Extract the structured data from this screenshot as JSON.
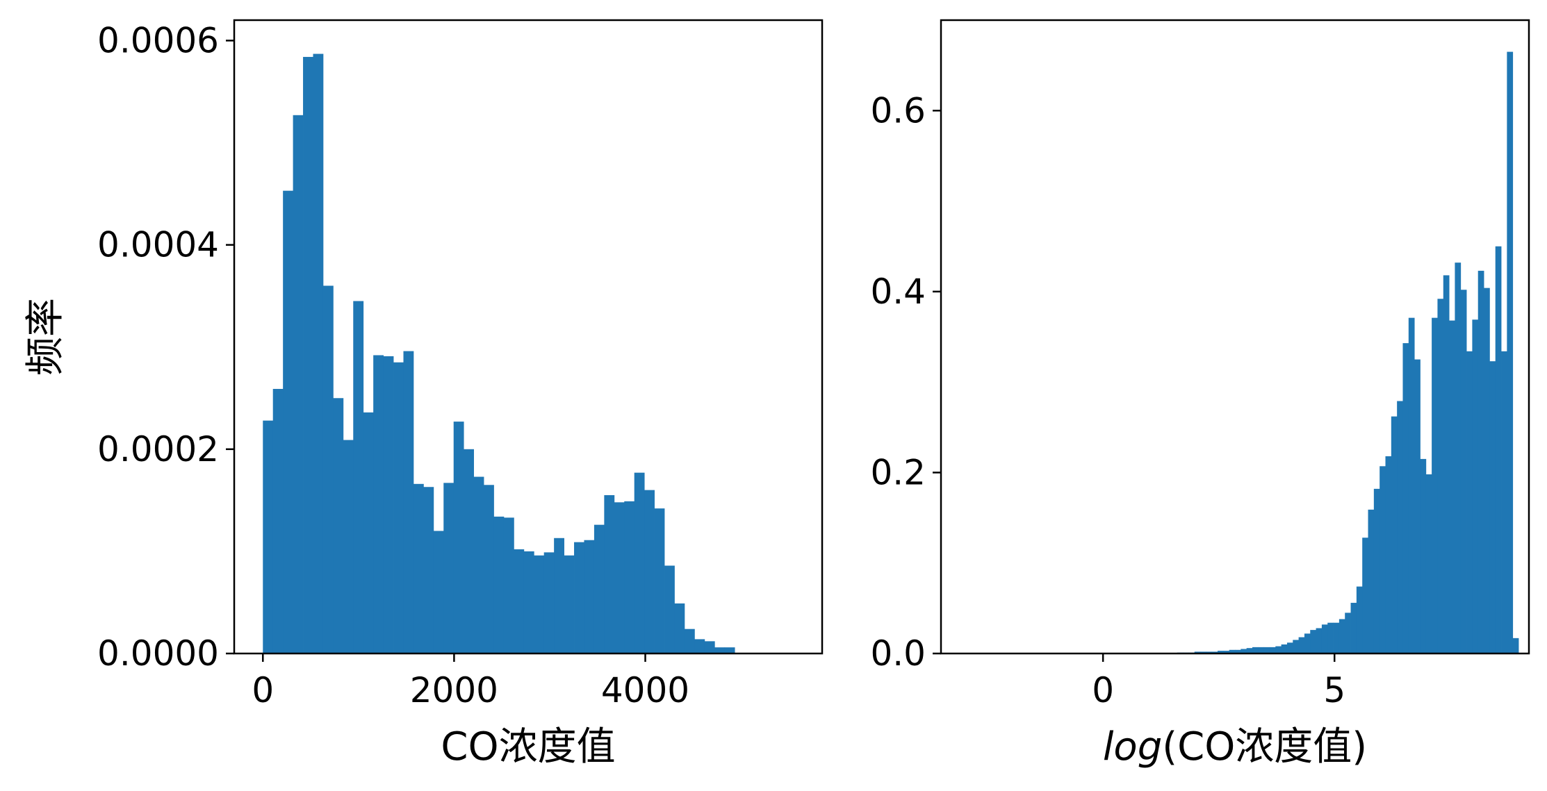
{
  "chart_data": [
    {
      "type": "bar",
      "subtype": "histogram",
      "xlabel": "CO浓度值",
      "ylabel": "频率",
      "xlim": [
        -300,
        5850
      ],
      "ylim": [
        0,
        0.00062
      ],
      "xticks": [
        0,
        2000,
        4000
      ],
      "xtick_labels": [
        "0",
        "2000",
        "4000"
      ],
      "yticks": [
        0,
        0.0002,
        0.0004,
        0.0006
      ],
      "ytick_labels": [
        "0.0000",
        "0.0002",
        "0.0004",
        "0.0006"
      ],
      "color": "#1f77b4",
      "bin_start": 0,
      "bin_width": 105,
      "values": [
        0.000228,
        0.000259,
        0.000453,
        0.000527,
        0.000584,
        0.000587,
        0.00036,
        0.00025,
        0.000209,
        0.000345,
        0.000236,
        0.000292,
        0.000291,
        0.000285,
        0.000296,
        0.000166,
        0.000163,
        0.00012,
        0.000167,
        0.000227,
        0.0002,
        0.000173,
        0.000165,
        0.000134,
        0.000133,
        0.000102,
        0.0001,
        9.6e-05,
        9.9e-05,
        0.000113,
        9.6e-05,
        0.000109,
        0.000111,
        0.000126,
        0.000155,
        0.000148,
        0.000149,
        0.000177,
        0.00016,
        0.000142,
        8.6e-05,
        4.9e-05,
        2.4e-05,
        1.4e-05,
        1.2e-05,
        6e-06,
        6e-06,
        0.0,
        0.0,
        0.0,
        0.0
      ]
    },
    {
      "type": "bar",
      "subtype": "histogram",
      "xlabel": "log(CO浓度值)",
      "xlabel_italic_part": "log",
      "xlabel_rest": "(CO浓度值)",
      "xlim": [
        -3.5,
        9.2
      ],
      "ylim": [
        0,
        0.7
      ],
      "xticks": [
        0,
        5
      ],
      "xtick_labels": [
        "0",
        "5"
      ],
      "yticks": [
        0,
        0.2,
        0.4,
        0.6
      ],
      "ytick_labels": [
        "0.0",
        "0.2",
        "0.4",
        "0.6"
      ],
      "color": "#1f77b4",
      "bin_start": 1.6,
      "bin_width": 0.125,
      "values": [
        0.001,
        0.001,
        0.001,
        0.002,
        0.002,
        0.002,
        0.002,
        0.003,
        0.003,
        0.004,
        0.004,
        0.005,
        0.006,
        0.007,
        0.007,
        0.007,
        0.007,
        0.008,
        0.01,
        0.012,
        0.015,
        0.018,
        0.022,
        0.026,
        0.028,
        0.032,
        0.034,
        0.034,
        0.038,
        0.045,
        0.056,
        0.074,
        0.128,
        0.159,
        0.182,
        0.207,
        0.218,
        0.262,
        0.279,
        0.343,
        0.371,
        0.325,
        0.215,
        0.198,
        0.371,
        0.392,
        0.418,
        0.368,
        0.432,
        0.402,
        0.334,
        0.369,
        0.423,
        0.404,
        0.323,
        0.45,
        0.334,
        0.665,
        0.017
      ]
    }
  ]
}
